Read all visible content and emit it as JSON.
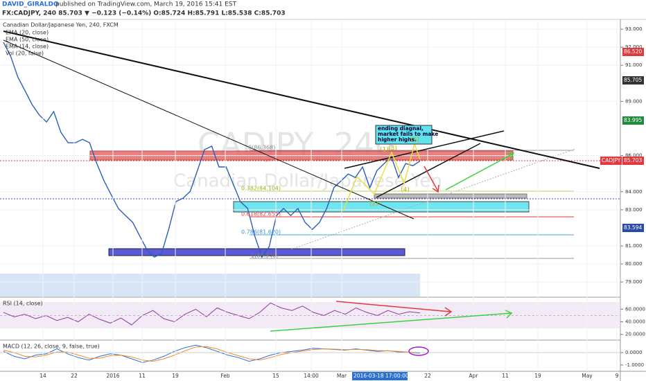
{
  "header": {
    "author": "DAVID_GIRALDO",
    "published": "published on TradingView.com, March 19, 2016 15:41 EST",
    "quote": "FX:CADJPY, 240 85.703 ▼ −0.123 (−0.14%) O:85.724 H:85.791 L:85.538 C:85.703"
  },
  "chart_data": [
    {
      "type": "line",
      "title": "Canadian Dollar/Japanese Yen, 240, FXCM",
      "color": "#2b5db8",
      "indicators": [
        "EMA (20, close)",
        "EMA (50, close)",
        "EMA (14, close)",
        "Vol (20, false)"
      ],
      "watermark": [
        "CADJPY, 240",
        "Canadian Dollar/Japanese Yen"
      ],
      "values": [
        92.27,
        91.5,
        90.35,
        89.59,
        88.82,
        88.24,
        87.86,
        88.44,
        87.28,
        86.71,
        86.71,
        86.9,
        86.71,
        85.56,
        84.6,
        83.83,
        83.07,
        82.68,
        82.3,
        81.53,
        80.77,
        80.38,
        80.57,
        81.91,
        83.45,
        83.64,
        84.02,
        85.17,
        86.33,
        86.52,
        85.37,
        85.37,
        84.41,
        83.45,
        83.07,
        81.53,
        80.38,
        80.96,
        82.68,
        83.07,
        82.68,
        83.07,
        82.3,
        81.91,
        82.3,
        83.07,
        84.22,
        84.6,
        84.98,
        84.79,
        85.37,
        84.22,
        85.17,
        85.56,
        85.94,
        84.79,
        85.56,
        85.44,
        85.7
      ],
      "ylim": [
        78.2,
        94.0
      ],
      "yticks": [
        {
          "value": 93,
          "label": "93.000"
        },
        {
          "value": 92,
          "label": "92.000"
        },
        {
          "value": 91,
          "label": "91.000"
        },
        {
          "value": 89,
          "label": "89.000"
        },
        {
          "value": 86,
          "label": "86.000"
        },
        {
          "value": 84,
          "label": "84.000"
        },
        {
          "value": 83,
          "label": "83.000"
        },
        {
          "value": 81,
          "label": "81.000"
        },
        {
          "value": 80,
          "label": "80.000"
        },
        {
          "value": 79,
          "label": "79.000"
        }
      ],
      "grid": true,
      "fib_labels": [
        "0(86.368)",
        "0.382(84.104)",
        "0.618(82.655)",
        "0.786(81.620)",
        "1(80.340)"
      ],
      "waves": [
        "(1)",
        "(2)",
        "(3)",
        "(4)",
        "(5)"
      ],
      "note": [
        "ending diagnal,",
        "market fails to make",
        "higher highs."
      ],
      "price_tags": [
        {
          "label": "86.520",
          "color": "#e0393e"
        },
        {
          "label": "85.705",
          "color": "#333333"
        },
        {
          "label": "83.995",
          "color": "#1e8a3a"
        },
        {
          "label": "CADJPY",
          "color": "#e0393e"
        },
        {
          "label": "85.703",
          "color": "#e0393e"
        },
        {
          "label": "83.594",
          "color": "#2a4aa8"
        }
      ]
    },
    {
      "type": "line",
      "title": "RSI (14, close)",
      "color": "#8e3a9e",
      "values": [
        55,
        48,
        52,
        45,
        50,
        42,
        47,
        40,
        52,
        44,
        38,
        46,
        35,
        50,
        58,
        45,
        40,
        52,
        60,
        48,
        62,
        55,
        50,
        45,
        55,
        70,
        62,
        58,
        65,
        55,
        50,
        58,
        52,
        62,
        55,
        50,
        58,
        52,
        56,
        54
      ],
      "ylim": [
        12,
        78
      ],
      "yticks": [
        {
          "value": 60,
          "label": "60.0000"
        },
        {
          "value": 40,
          "label": "40.0000"
        },
        {
          "value": 20,
          "label": "20.0000"
        }
      ]
    },
    {
      "type": "line",
      "title": "MACD (12, 26, close, 9, false, true)",
      "series": [
        {
          "color": "#2b6fd6",
          "values": [
            0.1,
            -0.3,
            -0.5,
            -0.2,
            -0.1,
            0.3,
            -0.1,
            -0.4,
            -0.6,
            -0.3,
            -0.1,
            -0.2,
            -0.5,
            -0.8,
            -0.6,
            -0.3,
            0.1,
            0.4,
            0.6,
            0.4,
            0.1,
            -0.2,
            -0.4,
            -0.7,
            -0.5,
            -0.2,
            0.0,
            0.1,
            0.2,
            0.35,
            0.3,
            0.25,
            0.2,
            0.3,
            0.2,
            0.1,
            0.15,
            0.05,
            0.0,
            -0.05
          ]
        },
        {
          "color": "#f08a24",
          "values": [
            0.2,
            0.0,
            -0.3,
            -0.35,
            -0.2,
            0.05,
            0.05,
            -0.2,
            -0.45,
            -0.45,
            -0.25,
            -0.2,
            -0.35,
            -0.6,
            -0.7,
            -0.5,
            -0.2,
            0.15,
            0.45,
            0.5,
            0.3,
            0.0,
            -0.25,
            -0.5,
            -0.6,
            -0.4,
            -0.15,
            0.0,
            0.12,
            0.25,
            0.3,
            0.28,
            0.24,
            0.26,
            0.24,
            0.17,
            0.14,
            0.1,
            0.04,
            0.0
          ]
        }
      ],
      "ylim": [
        -1.45,
        0.95
      ],
      "yticks": [
        {
          "value": 0,
          "label": "0.0000"
        },
        {
          "value": -1,
          "label": "-1.0000"
        }
      ]
    }
  ],
  "time_axis": [
    "14",
    "22",
    "2016",
    "11",
    "19",
    "Feb",
    "15",
    "14:00",
    "Mar",
    "2016-03-18 17:00:00",
    "22",
    "Apr",
    "11",
    "19",
    "May",
    "9"
  ]
}
